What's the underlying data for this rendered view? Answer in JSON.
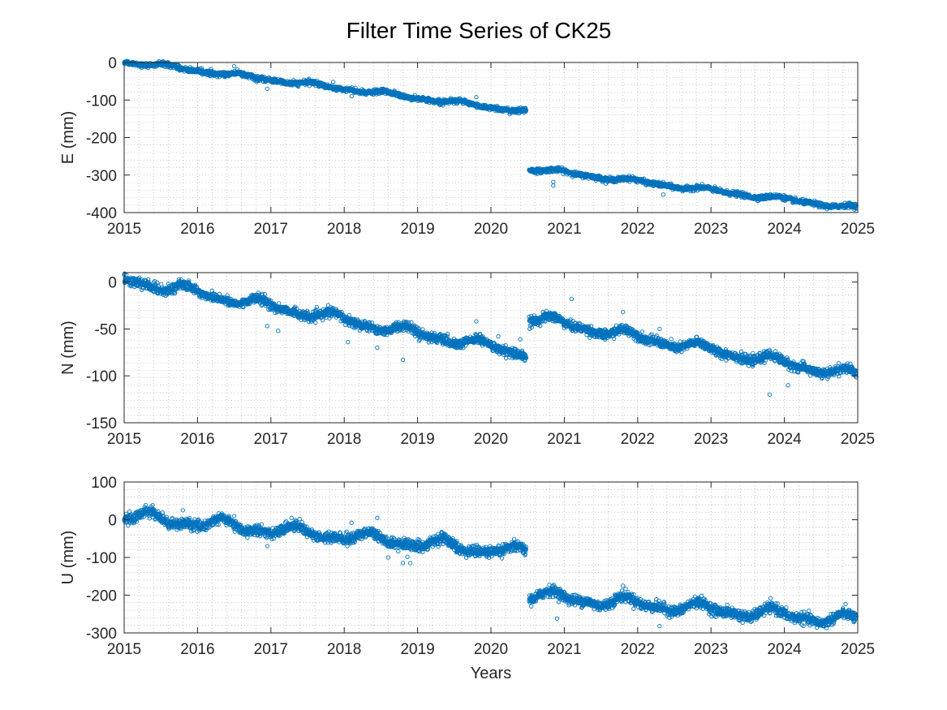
{
  "figure": {
    "title": "Filter Time Series of CK25",
    "xlabel": "Years"
  },
  "colors": {
    "marker": "#0072BD",
    "axis": "#262626",
    "grid": "#a0a0a0",
    "background": "#ffffff"
  },
  "chart_data": [
    {
      "type": "scatter",
      "ylabel": "E (mm)",
      "xlim": [
        2015,
        2025
      ],
      "ylim": [
        -400,
        0
      ],
      "xticks": [
        2015,
        2016,
        2017,
        2018,
        2019,
        2020,
        2021,
        2022,
        2023,
        2024,
        2025
      ],
      "yticks": [
        0,
        -100,
        -200,
        -300,
        -400
      ],
      "grid": true,
      "minor_grid": true,
      "marker": "open-circle",
      "segments": [
        {
          "x_start": 2015.0,
          "x_end": 2020.48,
          "y_start": 3,
          "y_end": -130,
          "noise": 3,
          "wiggle": 4
        },
        {
          "x_start": 2020.52,
          "x_end": 2024.98,
          "y_start": -282,
          "y_end": -388,
          "noise": 3,
          "wiggle": 4
        }
      ],
      "outliers": [
        [
          2016.5,
          -10
        ],
        [
          2016.95,
          -70
        ],
        [
          2017.85,
          -52
        ],
        [
          2018.1,
          -90
        ],
        [
          2019.8,
          -92
        ],
        [
          2020.85,
          -318
        ],
        [
          2020.85,
          -328
        ],
        [
          2022.35,
          -352
        ]
      ]
    },
    {
      "type": "scatter",
      "ylabel": "N (mm)",
      "xlim": [
        2015,
        2025
      ],
      "ylim": [
        -150,
        10
      ],
      "xticks": [
        2015,
        2016,
        2017,
        2018,
        2019,
        2020,
        2021,
        2022,
        2023,
        2024,
        2025
      ],
      "yticks": [
        0,
        -50,
        -100,
        -150
      ],
      "grid": true,
      "minor_grid": true,
      "marker": "open-circle",
      "segments": [
        {
          "x_start": 2015.0,
          "x_end": 2020.48,
          "y_start": 3,
          "y_end": -76,
          "noise": 2.5,
          "wiggle": 4
        },
        {
          "x_start": 2020.52,
          "x_end": 2024.98,
          "y_start": -38,
          "y_end": -100,
          "noise": 2.5,
          "wiggle": 4
        }
      ],
      "outliers": [
        [
          2015.8,
          0
        ],
        [
          2016.95,
          -47
        ],
        [
          2017.1,
          -52
        ],
        [
          2018.05,
          -64
        ],
        [
          2018.45,
          -70
        ],
        [
          2018.8,
          -83
        ],
        [
          2019.8,
          -42
        ],
        [
          2020.1,
          -58
        ],
        [
          2020.4,
          -61
        ],
        [
          2021.1,
          -18
        ],
        [
          2021.8,
          -32
        ],
        [
          2022.3,
          -50
        ],
        [
          2023.8,
          -120
        ],
        [
          2024.05,
          -110
        ],
        [
          2024.9,
          -87
        ]
      ]
    },
    {
      "type": "scatter",
      "ylabel": "U (mm)",
      "xlim": [
        2015,
        2025
      ],
      "ylim": [
        -300,
        100
      ],
      "xticks": [
        2015,
        2016,
        2017,
        2018,
        2019,
        2020,
        2021,
        2022,
        2023,
        2024,
        2025
      ],
      "yticks": [
        100,
        0,
        -100,
        -200,
        -300
      ],
      "grid": true,
      "minor_grid": true,
      "marker": "open-circle",
      "segments": [
        {
          "x_start": 2015.0,
          "x_end": 2020.48,
          "y_start": 10,
          "y_end": -88,
          "noise": 7,
          "wiggle": 12
        },
        {
          "x_start": 2020.52,
          "x_end": 2024.98,
          "y_start": -200,
          "y_end": -268,
          "noise": 7,
          "wiggle": 12
        }
      ],
      "outliers": [
        [
          2015.8,
          25
        ],
        [
          2016.5,
          10
        ],
        [
          2016.95,
          -70
        ],
        [
          2018.1,
          -8
        ],
        [
          2018.45,
          5
        ],
        [
          2018.6,
          -100
        ],
        [
          2018.8,
          -115
        ],
        [
          2018.9,
          -115
        ],
        [
          2020.9,
          -262
        ],
        [
          2021.8,
          -175
        ],
        [
          2022.3,
          -282
        ],
        [
          2024.95,
          -250
        ]
      ]
    }
  ]
}
